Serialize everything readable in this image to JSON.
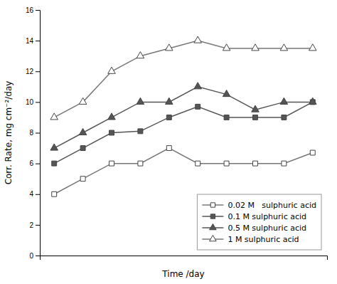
{
  "chart_data": {
    "type": "line",
    "xlabel": "Time /day",
    "ylabel": "Corr. Rate, mg cm⁻²/day",
    "x": [
      1,
      2,
      3,
      4,
      5,
      6,
      7,
      8,
      9,
      10
    ],
    "series": [
      {
        "name": "0.02 M   sulphuric acid",
        "color": "#777777",
        "marker": "square-open",
        "line_style": "solid",
        "values": [
          4.0,
          5.0,
          6.0,
          6.0,
          7.0,
          6.0,
          6.0,
          6.0,
          6.0,
          6.7
        ]
      },
      {
        "name": "0.1 M sulphuric acid",
        "color": "#555555",
        "marker": "square",
        "line_style": "solid",
        "values": [
          6.0,
          7.0,
          8.0,
          8.1,
          9.0,
          9.7,
          9.0,
          9.0,
          9.0,
          10.0
        ]
      },
      {
        "name": "0.5 M sulphuric acid",
        "color": "#555555",
        "marker": "triangle",
        "line_style": "solid",
        "values": [
          7.0,
          8.0,
          9.0,
          10.0,
          10.0,
          11.0,
          10.5,
          9.5,
          10.0,
          10.0
        ]
      },
      {
        "name": "1 M sulphuric acid",
        "color": "#777777",
        "marker": "triangle-open",
        "line_style": "solid",
        "values": [
          9.0,
          10.0,
          12.0,
          13.0,
          13.5,
          14.0,
          13.5,
          13.5,
          13.5,
          13.5
        ]
      }
    ],
    "xlim": [
      0.5,
      10.5
    ],
    "xticks": [],
    "ylim": [
      0,
      16
    ],
    "yticks": [
      0,
      2,
      4,
      6,
      8,
      10,
      12,
      14,
      16
    ],
    "tick_labels": "y",
    "legend": "lower right"
  }
}
